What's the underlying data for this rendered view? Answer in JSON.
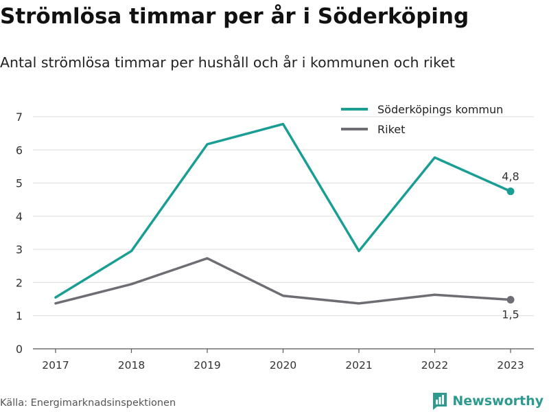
{
  "title": "Strömlösa timmar per år i Söderköping",
  "subtitle": "Antal strömlösa timmar per hushåll och år i kommunen och riket",
  "source": "Källa: Energimarknadsinspektionen",
  "brand": {
    "name": "Newsworthy",
    "icon": "newsworthy-logo-icon",
    "color": "#2c9a8f"
  },
  "chart_data": {
    "type": "line",
    "x": [
      "2017",
      "2018",
      "2019",
      "2020",
      "2021",
      "2022",
      "2023"
    ],
    "yticks": [
      "0",
      "1",
      "2",
      "3",
      "4",
      "5",
      "6",
      "7"
    ],
    "ylim": [
      0,
      7
    ],
    "grid": true,
    "legend_position": "top-right",
    "series": [
      {
        "name": "Söderköpings kommun",
        "color": "#1a9e93",
        "values": [
          1.55,
          2.95,
          6.17,
          6.78,
          2.95,
          5.77,
          4.75
        ],
        "end_label": "4,8"
      },
      {
        "name": "Riket",
        "color": "#6d6d73",
        "values": [
          1.37,
          1.95,
          2.73,
          1.6,
          1.37,
          1.63,
          1.48
        ],
        "end_label": "1,5"
      }
    ]
  }
}
